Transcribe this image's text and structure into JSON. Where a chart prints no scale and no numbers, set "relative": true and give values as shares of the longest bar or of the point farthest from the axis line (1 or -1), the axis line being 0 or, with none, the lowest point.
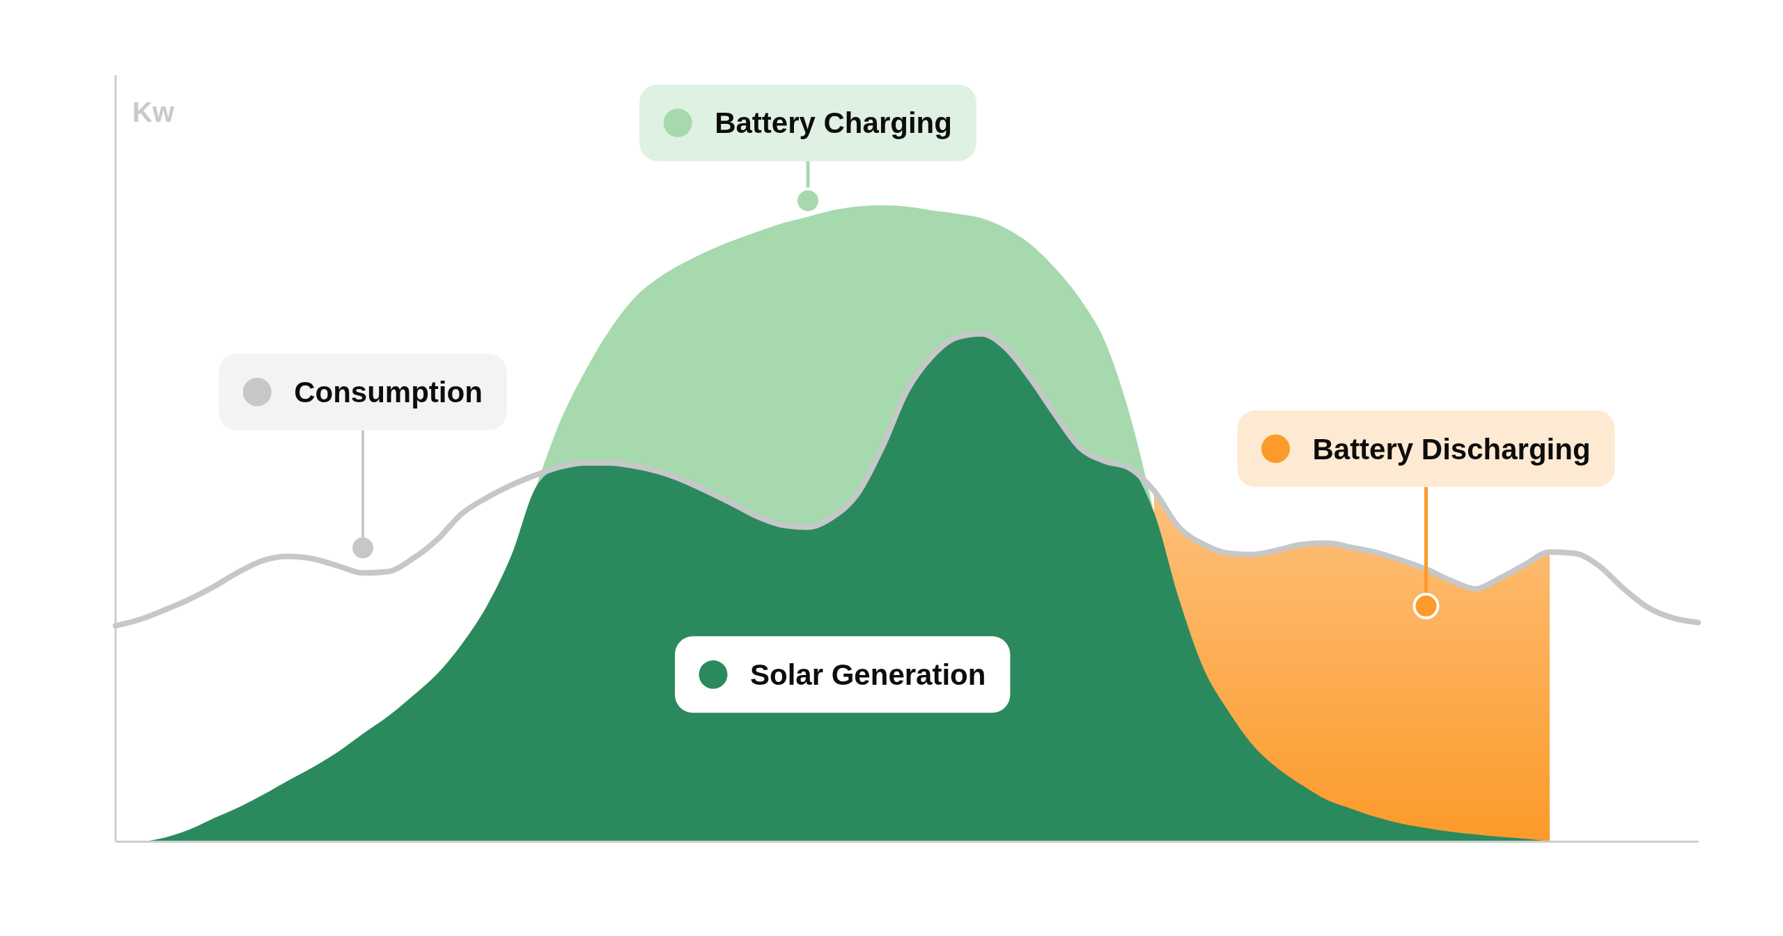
{
  "chart_data": {
    "type": "area",
    "relative": true,
    "ylabel": "Kw",
    "legend": "center",
    "categories": [
      null,
      null,
      null,
      null,
      null,
      null,
      null,
      null,
      null,
      null,
      null,
      null,
      null,
      null,
      null,
      null,
      null,
      null,
      null,
      null,
      null,
      null,
      null,
      null,
      null,
      null,
      null,
      null,
      null,
      null,
      null,
      null,
      null,
      null,
      null,
      null,
      null,
      null,
      null,
      null,
      null,
      null,
      null,
      null,
      null,
      null,
      null,
      null,
      null,
      null,
      null,
      null,
      null,
      null,
      null,
      null,
      null,
      null,
      null,
      null,
      null,
      null,
      null,
      null,
      null
    ],
    "series": [
      {
        "name": "Battery Charging",
        "color": "#a6d9ae",
        "values": [
          null,
          null,
          null,
          null,
          null,
          null,
          null,
          null,
          null,
          null,
          null,
          null,
          null,
          null,
          null,
          null,
          null,
          0.557,
          0.662,
          0.74,
          0.805,
          0.855,
          0.887,
          0.91,
          0.929,
          0.945,
          0.959,
          0.972,
          0.982,
          0.992,
          0.998,
          1,
          0.998,
          0.992,
          0.987,
          0.98,
          0.964,
          0.939,
          0.901,
          0.853,
          0.787,
          0.673,
          0.517,
          null,
          null,
          null,
          null,
          null,
          null,
          null,
          null,
          null,
          null,
          null,
          null,
          null,
          null,
          null,
          null,
          null,
          null,
          null,
          null,
          null,
          null
        ]
      },
      {
        "name": "Battery Discharging",
        "color": "#fc9a2a",
        "values": [
          null,
          null,
          null,
          null,
          null,
          null,
          null,
          null,
          null,
          null,
          null,
          null,
          null,
          null,
          null,
          null,
          null,
          null,
          null,
          null,
          null,
          null,
          null,
          null,
          null,
          null,
          null,
          null,
          null,
          null,
          null,
          null,
          null,
          null,
          null,
          null,
          null,
          null,
          null,
          null,
          null,
          null,
          0.551,
          0.494,
          0.467,
          0.453,
          0.451,
          0.458,
          0.467,
          0.469,
          0.462,
          0.454,
          0.442,
          0.428,
          0.41,
          0.397,
          0.414,
          0.435,
          0.455,
          null,
          null,
          null,
          null,
          null,
          null
        ]
      },
      {
        "name": "Solar Generation",
        "color": "#2b8a5d",
        "values": [
          0,
          0,
          0.006,
          0.019,
          0.037,
          0.054,
          0.074,
          0.096,
          0.117,
          0.141,
          0.169,
          0.196,
          0.228,
          0.263,
          0.31,
          0.369,
          0.449,
          0.557,
          0.589,
          0.595,
          0.595,
          0.59,
          0.581,
          0.567,
          0.549,
          0.53,
          0.51,
          0.497,
          0.494,
          0.51,
          0.546,
          0.619,
          0.708,
          0.762,
          0.792,
          0.798,
          0.776,
          0.728,
          0.671,
          0.619,
          0.598,
          0.587,
          0.517,
          0.382,
          0.272,
          0.205,
          0.151,
          0.115,
          0.088,
          0.065,
          0.051,
          0.038,
          0.028,
          0.021,
          0.015,
          0.011,
          0.007,
          0.004,
          0,
          null,
          null,
          null,
          null,
          null,
          null
        ]
      },
      {
        "name": "Consumption",
        "type": "line",
        "color": "#c6c7c9",
        "values": [
          0.339,
          0.349,
          0.364,
          0.381,
          0.401,
          0.424,
          0.442,
          0.448,
          0.444,
          0.433,
          0.422,
          0.424,
          0.444,
          0.474,
          0.515,
          0.54,
          0.56,
          0.576,
          0.589,
          0.595,
          0.595,
          0.59,
          0.581,
          0.567,
          0.549,
          0.53,
          0.51,
          0.497,
          0.494,
          0.51,
          0.546,
          0.619,
          0.708,
          0.762,
          0.792,
          0.798,
          0.776,
          0.728,
          0.671,
          0.619,
          0.598,
          0.587,
          0.551,
          0.494,
          0.467,
          0.453,
          0.451,
          0.458,
          0.467,
          0.469,
          0.462,
          0.454,
          0.442,
          0.428,
          0.41,
          0.397,
          0.414,
          0.435,
          0.455,
          0.453,
          0.433,
          0.397,
          0.367,
          0.351,
          0.344
        ]
      }
    ]
  }
}
